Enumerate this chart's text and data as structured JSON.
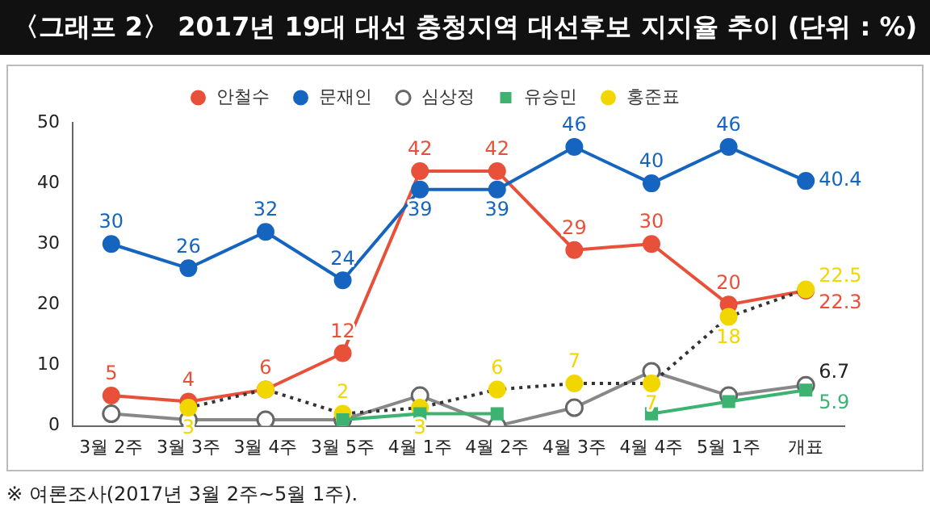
{
  "chart_data": {
    "type": "line",
    "title": "〈그래프 2〉 2017년 19대 대선 충청지역 대선후보 지지율 추이 (단위 : %)",
    "categories": [
      "3월 2주",
      "3월 3주",
      "3월 4주",
      "3월 5주",
      "4월 1주",
      "4월 2주",
      "4월 3주",
      "4월 4주",
      "5월 1주",
      "개표"
    ],
    "series": [
      {
        "name": "안철수",
        "color": "#e8503a",
        "marker": "circle",
        "line_style": "solid",
        "values": [
          5,
          4,
          6,
          12,
          42,
          42,
          29,
          30,
          20,
          22.3
        ],
        "value_labels": [
          "5",
          "4",
          "6",
          "12",
          "42",
          "42",
          "29",
          "30",
          "20",
          "22.3"
        ]
      },
      {
        "name": "문재인",
        "color": "#1565c0",
        "marker": "circle",
        "line_style": "solid",
        "values": [
          30,
          26,
          32,
          24,
          39,
          39,
          46,
          40,
          46,
          40.4
        ],
        "value_labels": [
          "30",
          "26",
          "32",
          "24",
          "39",
          "39",
          "46",
          "40",
          "46",
          "40.4"
        ]
      },
      {
        "name": "심상정",
        "color": "#888888",
        "marker": "circle",
        "line_style": "solid",
        "values": [
          2,
          1,
          1,
          1,
          5,
          0,
          3,
          9,
          5,
          6.7
        ],
        "value_labels": [
          null,
          null,
          null,
          null,
          null,
          null,
          null,
          null,
          null,
          "6.7"
        ]
      },
      {
        "name": "유승민",
        "color": "#3cb371",
        "marker": "square",
        "line_style": "solid",
        "values": [
          null,
          null,
          null,
          1,
          2,
          2,
          null,
          2,
          4,
          5.9
        ],
        "value_labels": [
          null,
          null,
          null,
          null,
          null,
          null,
          null,
          null,
          null,
          "5.9"
        ]
      },
      {
        "name": "홍준표",
        "color": "#f2d600",
        "marker": "circle",
        "line_style": "dotted",
        "values": [
          null,
          3,
          6,
          2,
          3,
          6,
          7,
          7,
          18,
          22.5
        ],
        "value_labels": [
          null,
          "3",
          null,
          "2",
          "3",
          "6",
          "7",
          "7",
          "18",
          "22.5"
        ]
      }
    ],
    "ylim": [
      0,
      50
    ],
    "yticks": [
      0,
      10,
      20,
      30,
      40,
      50
    ],
    "grid": false,
    "legend": "top",
    "annotations": [
      "※ 여론조사(2017년 3월 2주~5월 1주)."
    ]
  }
}
